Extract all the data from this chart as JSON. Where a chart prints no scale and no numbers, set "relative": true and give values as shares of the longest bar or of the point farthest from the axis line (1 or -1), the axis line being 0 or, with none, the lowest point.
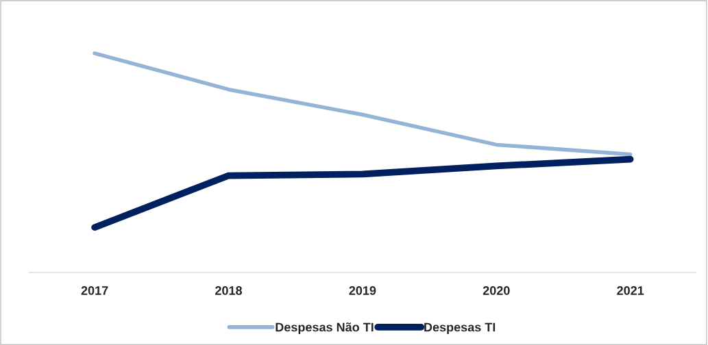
{
  "chart_data": {
    "type": "line",
    "relative": true,
    "categories": [
      "2017",
      "2018",
      "2019",
      "2020",
      "2021"
    ],
    "series": [
      {
        "name": "Despesas Não TI",
        "color": "#95b3d7",
        "values": [
          1,
          0.835,
          0.72,
          0.583,
          0.539
        ]
      },
      {
        "name": "Despesas TI",
        "color": "#002060",
        "values": [
          0.206,
          0.442,
          0.449,
          0.486,
          0.517
        ]
      }
    ],
    "legend": "bottom",
    "grid": false,
    "marker": "none",
    "line_style": "solid"
  }
}
